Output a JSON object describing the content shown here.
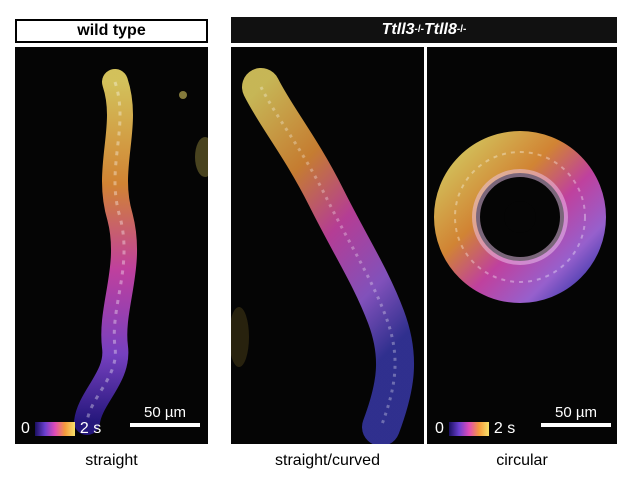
{
  "headers": {
    "wild_type": "wild type",
    "mutant_main": "Ttll3",
    "mutant_sup1": "-/-",
    "mutant_main2": "Ttll8",
    "mutant_sup2": "-/-"
  },
  "panels": [
    {
      "caption": "straight",
      "colorbar_start": "0",
      "colorbar_end": "2 s",
      "scalebar": "50 µm"
    },
    {
      "caption": "straight/curved"
    },
    {
      "caption": "circular",
      "colorbar_start": "0",
      "colorbar_end": "2 s",
      "scalebar": "50 µm"
    }
  ],
  "colors": {
    "start": "#1a1060",
    "mid": "#e04bb8",
    "end": "#f7e26a"
  }
}
